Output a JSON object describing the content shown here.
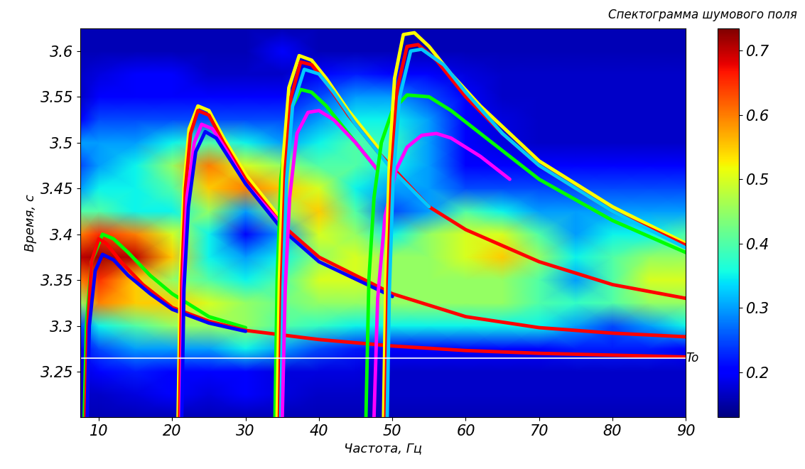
{
  "chart_data": {
    "type": "line",
    "title": "Спектограмма шумового поля",
    "x_label": "Частота, Гц",
    "y_label": "Время, с",
    "xlim": [
      7.5,
      90
    ],
    "ylim": [
      3.2,
      3.625
    ],
    "xticks": [
      10,
      20,
      30,
      40,
      50,
      60,
      70,
      80,
      90
    ],
    "yticks": [
      3.25,
      3.3,
      3.35,
      3.4,
      3.45,
      3.5,
      3.55,
      3.6
    ],
    "grid": false,
    "heatmap": {
      "cell_x": [
        7.5,
        10,
        15,
        20,
        25,
        30,
        35,
        40,
        45,
        50,
        55,
        60,
        65,
        70,
        75,
        80,
        85,
        90
      ],
      "cell_y": [
        3.2,
        3.225,
        3.25,
        3.275,
        3.3,
        3.325,
        3.35,
        3.375,
        3.4,
        3.425,
        3.45,
        3.475,
        3.5,
        3.525,
        3.55,
        3.575,
        3.6,
        3.625
      ],
      "cells": [
        [
          0.16,
          0.16,
          0.16,
          0.16,
          0.16,
          0.16,
          0.16,
          0.16,
          0.16,
          0.16,
          0.16,
          0.16,
          0.16,
          0.16,
          0.16,
          0.16,
          0.16,
          0.16
        ],
        [
          0.17,
          0.17,
          0.18,
          0.2,
          0.18,
          0.2,
          0.18,
          0.17,
          0.17,
          0.17,
          0.17,
          0.17,
          0.17,
          0.17,
          0.17,
          0.17,
          0.17,
          0.17
        ],
        [
          0.18,
          0.2,
          0.22,
          0.2,
          0.2,
          0.2,
          0.18,
          0.18,
          0.18,
          0.17,
          0.17,
          0.17,
          0.17,
          0.17,
          0.17,
          0.17,
          0.17,
          0.17
        ],
        [
          0.2,
          0.25,
          0.3,
          0.3,
          0.3,
          0.35,
          0.3,
          0.25,
          0.22,
          0.2,
          0.2,
          0.2,
          0.2,
          0.2,
          0.22,
          0.22,
          0.22,
          0.2
        ],
        [
          0.25,
          0.35,
          0.4,
          0.45,
          0.45,
          0.45,
          0.4,
          0.38,
          0.35,
          0.35,
          0.35,
          0.35,
          0.35,
          0.35,
          0.3,
          0.25,
          0.3,
          0.35
        ],
        [
          0.45,
          0.6,
          0.55,
          0.55,
          0.5,
          0.45,
          0.42,
          0.45,
          0.45,
          0.45,
          0.45,
          0.45,
          0.45,
          0.4,
          0.38,
          0.4,
          0.45,
          0.45
        ],
        [
          0.6,
          0.65,
          0.55,
          0.45,
          0.4,
          0.35,
          0.4,
          0.5,
          0.5,
          0.45,
          0.45,
          0.45,
          0.45,
          0.4,
          0.3,
          0.4,
          0.5,
          0.5
        ],
        [
          0.7,
          0.72,
          0.7,
          0.55,
          0.35,
          0.3,
          0.35,
          0.45,
          0.5,
          0.45,
          0.45,
          0.5,
          0.55,
          0.45,
          0.35,
          0.4,
          0.45,
          0.45
        ],
        [
          0.6,
          0.65,
          0.6,
          0.5,
          0.35,
          0.2,
          0.3,
          0.5,
          0.45,
          0.35,
          0.45,
          0.5,
          0.5,
          0.4,
          0.3,
          0.35,
          0.35,
          0.4
        ],
        [
          0.4,
          0.4,
          0.35,
          0.35,
          0.45,
          0.3,
          0.45,
          0.55,
          0.4,
          0.25,
          0.3,
          0.4,
          0.35,
          0.3,
          0.3,
          0.3,
          0.3,
          0.3
        ],
        [
          0.3,
          0.35,
          0.35,
          0.4,
          0.55,
          0.6,
          0.55,
          0.5,
          0.35,
          0.3,
          0.3,
          0.25,
          0.25,
          0.25,
          0.25,
          0.25,
          0.25,
          0.25
        ],
        [
          0.25,
          0.3,
          0.35,
          0.45,
          0.6,
          0.5,
          0.45,
          0.4,
          0.4,
          0.35,
          0.3,
          0.2,
          0.2,
          0.2,
          0.2,
          0.2,
          0.2,
          0.2
        ],
        [
          0.3,
          0.3,
          0.3,
          0.35,
          0.4,
          0.35,
          0.3,
          0.35,
          0.4,
          0.38,
          0.3,
          0.2,
          0.18,
          0.17,
          0.17,
          0.17,
          0.17,
          0.17
        ],
        [
          0.2,
          0.25,
          0.25,
          0.25,
          0.25,
          0.25,
          0.25,
          0.3,
          0.35,
          0.35,
          0.3,
          0.2,
          0.18,
          0.17,
          0.17,
          0.17,
          0.17,
          0.17
        ],
        [
          0.17,
          0.2,
          0.2,
          0.2,
          0.2,
          0.2,
          0.2,
          0.25,
          0.3,
          0.3,
          0.25,
          0.2,
          0.17,
          0.17,
          0.17,
          0.17,
          0.17,
          0.17
        ],
        [
          0.17,
          0.18,
          0.2,
          0.2,
          0.17,
          0.17,
          0.17,
          0.2,
          0.22,
          0.2,
          0.2,
          0.18,
          0.17,
          0.17,
          0.17,
          0.17,
          0.17,
          0.17
        ],
        [
          0.16,
          0.16,
          0.16,
          0.16,
          0.16,
          0.16,
          0.2,
          0.16,
          0.16,
          0.16,
          0.16,
          0.16,
          0.16,
          0.16,
          0.16,
          0.16,
          0.16,
          0.16
        ],
        [
          0.16,
          0.16,
          0.16,
          0.16,
          0.16,
          0.16,
          0.16,
          0.16,
          0.16,
          0.16,
          0.16,
          0.16,
          0.16,
          0.16,
          0.16,
          0.16,
          0.16,
          0.16
        ]
      ],
      "colorbar": {
        "lim": [
          0.13,
          0.735
        ],
        "ticks": [
          0.2,
          0.3,
          0.4,
          0.5,
          0.6,
          0.7
        ]
      }
    },
    "hlines": [
      {
        "y": 3.265,
        "label": "To",
        "color": "#ffffff"
      }
    ],
    "series": [
      {
        "color": "#00ff00",
        "x": [
          8.0,
          8.3,
          9,
          10.5,
          12,
          14,
          17,
          20,
          25,
          30
        ],
        "values": [
          3.2,
          3.3,
          3.37,
          3.4,
          3.395,
          3.38,
          3.355,
          3.335,
          3.31,
          3.298
        ]
      },
      {
        "color": "#ff0000",
        "x": [
          8.2,
          8.5,
          9,
          10,
          11,
          13,
          16,
          20,
          25,
          30,
          40,
          50,
          60,
          70,
          80,
          90
        ],
        "values": [
          3.2,
          3.3,
          3.37,
          3.395,
          3.39,
          3.37,
          3.345,
          3.32,
          3.305,
          3.295,
          3.285,
          3.278,
          3.273,
          3.27,
          3.268,
          3.266
        ]
      },
      {
        "color": "#0000ff",
        "x": [
          8.4,
          8.7,
          9.5,
          10.5,
          12,
          14,
          17,
          20,
          25,
          30
        ],
        "values": [
          3.2,
          3.3,
          3.36,
          3.378,
          3.372,
          3.355,
          3.335,
          3.318,
          3.303,
          3.294
        ]
      },
      {
        "color": "#ffff00",
        "x": [
          20.8,
          21.1,
          21.6,
          22.3,
          23.5,
          25,
          27,
          30,
          35
        ],
        "values": [
          3.2,
          3.35,
          3.45,
          3.515,
          3.54,
          3.535,
          3.505,
          3.465,
          3.415
        ]
      },
      {
        "color": "#ff0000",
        "x": [
          21,
          21.3,
          21.8,
          22.5,
          23.5,
          25,
          27,
          30,
          35,
          40,
          50,
          60,
          70,
          80,
          90
        ],
        "values": [
          3.2,
          3.35,
          3.45,
          3.51,
          3.535,
          3.53,
          3.5,
          3.46,
          3.41,
          3.375,
          3.335,
          3.31,
          3.298,
          3.292,
          3.288
        ]
      },
      {
        "color": "#ff00ff",
        "x": [
          21.2,
          21.5,
          22,
          23,
          24,
          25.5,
          27.5,
          30,
          35
        ],
        "values": [
          3.2,
          3.35,
          3.44,
          3.5,
          3.52,
          3.515,
          3.49,
          3.455,
          3.41
        ]
      },
      {
        "color": "#0000ff",
        "x": [
          21.3,
          21.6,
          22.2,
          23.2,
          24.5,
          26,
          28,
          30,
          35,
          40,
          50
        ],
        "values": [
          3.2,
          3.34,
          3.43,
          3.49,
          3.512,
          3.505,
          3.48,
          3.455,
          3.405,
          3.37,
          3.332
        ]
      },
      {
        "color": "#00ff00",
        "x": [
          34.0,
          34.3,
          34.8,
          35.8,
          37.5,
          39,
          41,
          44,
          48
        ],
        "values": [
          3.2,
          3.35,
          3.46,
          3.53,
          3.558,
          3.555,
          3.54,
          3.51,
          3.47
        ]
      },
      {
        "color": "#ffff00",
        "x": [
          34.3,
          34.6,
          35.1,
          35.9,
          37.3,
          39,
          41,
          44,
          48
        ],
        "values": [
          3.2,
          3.35,
          3.48,
          3.56,
          3.595,
          3.59,
          3.57,
          3.535,
          3.495
        ]
      },
      {
        "color": "#ff0000",
        "x": [
          34.6,
          34.9,
          35.4,
          36.2,
          37.5,
          39,
          41,
          44,
          48,
          55,
          60,
          70,
          80,
          90
        ],
        "values": [
          3.2,
          3.35,
          3.47,
          3.55,
          3.588,
          3.585,
          3.565,
          3.53,
          3.49,
          3.43,
          3.405,
          3.37,
          3.345,
          3.33
        ]
      },
      {
        "color": "#00c8ff",
        "x": [
          34.8,
          35.1,
          35.6,
          36.4,
          38,
          40,
          42,
          45,
          50,
          55
        ],
        "values": [
          3.2,
          3.34,
          3.46,
          3.54,
          3.58,
          3.575,
          3.555,
          3.52,
          3.47,
          3.43
        ]
      },
      {
        "color": "#ff00ff",
        "x": [
          35.0,
          35.4,
          36,
          37,
          38.5,
          40,
          42,
          45,
          48
        ],
        "values": [
          3.2,
          3.34,
          3.44,
          3.51,
          3.533,
          3.535,
          3.525,
          3.5,
          3.47
        ]
      },
      {
        "color": "#00ff00",
        "x": [
          46.4,
          46.8,
          47.5,
          48.5,
          50,
          52,
          55,
          58,
          62,
          70,
          80,
          90
        ],
        "values": [
          3.2,
          3.35,
          3.44,
          3.5,
          3.535,
          3.552,
          3.55,
          3.535,
          3.51,
          3.46,
          3.415,
          3.38
        ]
      },
      {
        "color": "#ff00ff",
        "x": [
          47.5,
          48,
          49,
          50.5,
          52,
          54,
          56,
          58,
          62,
          66
        ],
        "values": [
          3.2,
          3.33,
          3.42,
          3.47,
          3.495,
          3.508,
          3.51,
          3.505,
          3.485,
          3.46
        ]
      },
      {
        "color": "#ffff00",
        "x": [
          48.8,
          49.1,
          49.6,
          50.3,
          51.5,
          53,
          55,
          58,
          62,
          70,
          80,
          90
        ],
        "values": [
          3.2,
          3.35,
          3.48,
          3.57,
          3.618,
          3.62,
          3.605,
          3.575,
          3.54,
          3.48,
          3.43,
          3.39
        ]
      },
      {
        "color": "#ff0000",
        "x": [
          49.1,
          49.4,
          49.9,
          50.7,
          52,
          53.5,
          56,
          60,
          65,
          70,
          80,
          90
        ],
        "values": [
          3.2,
          3.35,
          3.47,
          3.56,
          3.605,
          3.607,
          3.59,
          3.55,
          3.51,
          3.475,
          3.425,
          3.388
        ]
      },
      {
        "color": "#00c8ff",
        "x": [
          49.3,
          49.6,
          50.1,
          51,
          52.5,
          54,
          57,
          60,
          65,
          70,
          80,
          90
        ],
        "values": [
          3.2,
          3.34,
          3.46,
          3.55,
          3.6,
          3.602,
          3.585,
          3.555,
          3.51,
          3.475,
          3.425,
          3.385
        ]
      }
    ]
  }
}
